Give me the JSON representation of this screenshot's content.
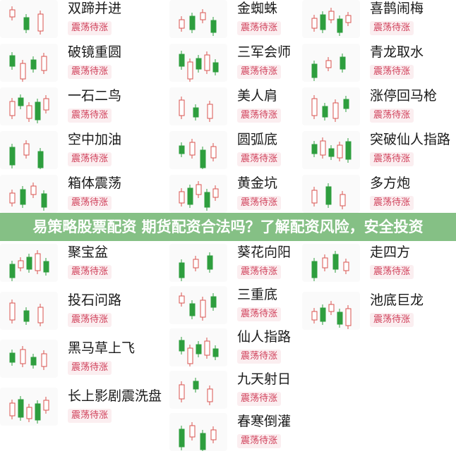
{
  "badge_text": "震荡待涨",
  "colors": {
    "up": "#d9534f",
    "down": "#2e9e3e",
    "badge_text": "#d0405a",
    "banner": "#78b978"
  },
  "columns": [
    {
      "items": [
        "双蹄并进",
        "破镜重圆",
        "一石二鸟",
        "空中加油",
        "箱体震荡",
        "聚宝盆",
        "投石问路",
        "黑马草上飞",
        "长上影剧震洗盘"
      ]
    },
    {
      "items": [
        "金蜘蛛",
        "三军会师",
        "美人肩",
        "圆弧底",
        "黄金坑",
        "葵花向阳",
        "三重底",
        "仙人指路",
        "九天射日",
        "春寒倒灌"
      ]
    },
    {
      "items": [
        "喜鹊闹梅",
        "青龙取水",
        "涨停回马枪",
        "突破仙人指路",
        "多方炮",
        "走四方",
        "池底巨龙"
      ]
    }
  ],
  "banner": {
    "text": "易策略股票配资 期货配资合法吗？了解配资风险，安全投资"
  }
}
